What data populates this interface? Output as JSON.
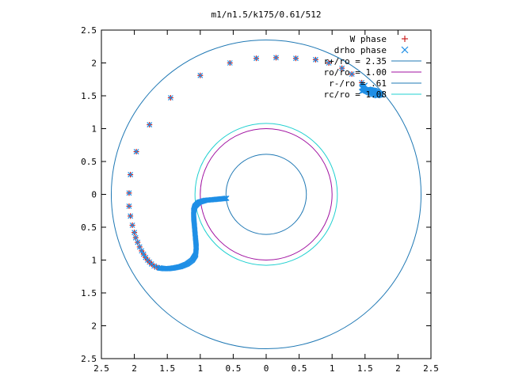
{
  "chart_data": {
    "type": "scatter",
    "title": "m1/n1.5/k175/0.61/512",
    "xlabel": "",
    "ylabel": "",
    "xlim": [
      -2.5,
      2.5
    ],
    "ylim": [
      -2.5,
      2.5
    ],
    "x_ticks": [
      -2.5,
      -2,
      -1.5,
      -1,
      -0.5,
      0,
      0.5,
      1,
      1.5,
      2,
      2.5
    ],
    "y_ticks": [
      -2.5,
      -2,
      -1.5,
      -1,
      -0.5,
      0,
      0.5,
      1,
      1.5,
      2,
      2.5
    ],
    "x_tick_labels": [
      "2.5",
      "2",
      "1.5",
      "1",
      "0.5",
      "0",
      "0.5",
      "1",
      "1.5",
      "2",
      "2.5"
    ],
    "y_tick_labels": [
      "2.5",
      "2",
      "1.5",
      "1",
      "0.5",
      "0",
      "0.5",
      "1",
      "1.5",
      "2",
      "2.5"
    ],
    "grid": false,
    "legend_position": "top-right",
    "colors": {
      "w_phase": "#cc2222",
      "drho_phase": "#1f8fe6",
      "r_plus": "#1f78b4",
      "r_o": "#a010a0",
      "r_minus": "#1f78b4",
      "r_c": "#20d0d0"
    },
    "circles": [
      {
        "name": "r+/ro = 2.35",
        "radius": 2.35,
        "color": "#1f78b4"
      },
      {
        "name": "ro/ro = 1.00",
        "radius": 1.0,
        "color": "#a010a0"
      },
      {
        "name": "r-/ro = .61",
        "radius": 0.61,
        "color": "#1f78b4"
      },
      {
        "name": "rc/ro = 1.08",
        "radius": 1.08,
        "color": "#20d0d0"
      }
    ],
    "series": [
      {
        "name": "W phase",
        "marker": "+",
        "color": "#cc2222",
        "points": [
          [
            1.58,
            1.57
          ],
          [
            1.45,
            1.7
          ],
          [
            1.3,
            1.83
          ],
          [
            1.15,
            1.92
          ],
          [
            0.95,
            2.0
          ],
          [
            0.75,
            2.05
          ],
          [
            0.45,
            2.07
          ],
          [
            0.15,
            2.08
          ],
          [
            -0.15,
            2.07
          ],
          [
            -0.55,
            2.0
          ],
          [
            -1.0,
            1.81
          ],
          [
            -1.45,
            1.47
          ],
          [
            -1.77,
            1.06
          ],
          [
            -1.97,
            0.65
          ],
          [
            -2.06,
            0.3
          ],
          [
            -2.08,
            0.02
          ],
          [
            -2.08,
            -0.18
          ],
          [
            -2.06,
            -0.33
          ],
          [
            -2.03,
            -0.47
          ],
          [
            -2.0,
            -0.58
          ],
          [
            -1.98,
            -0.66
          ],
          [
            -1.95,
            -0.73
          ],
          [
            -1.92,
            -0.8
          ],
          [
            -1.89,
            -0.86
          ],
          [
            -1.86,
            -0.91
          ],
          [
            -1.83,
            -0.96
          ],
          [
            -1.8,
            -1.0
          ],
          [
            -1.77,
            -1.03
          ],
          [
            -1.74,
            -1.06
          ],
          [
            -1.7,
            -1.09
          ],
          [
            -1.66,
            -1.11
          ],
          [
            -1.62,
            -1.12
          ]
        ]
      },
      {
        "name": "drho phase",
        "marker": "x",
        "color": "#1f8fe6",
        "points": [
          [
            1.58,
            1.57
          ],
          [
            1.45,
            1.7
          ],
          [
            1.3,
            1.83
          ],
          [
            1.15,
            1.92
          ],
          [
            0.95,
            2.0
          ],
          [
            0.75,
            2.05
          ],
          [
            0.45,
            2.07
          ],
          [
            0.15,
            2.08
          ],
          [
            -0.15,
            2.07
          ],
          [
            -0.55,
            2.0
          ],
          [
            -1.0,
            1.81
          ],
          [
            -1.45,
            1.47
          ],
          [
            -1.77,
            1.06
          ],
          [
            -1.97,
            0.65
          ],
          [
            -2.06,
            0.3
          ],
          [
            -2.08,
            0.02
          ],
          [
            -2.08,
            -0.18
          ],
          [
            -2.06,
            -0.33
          ],
          [
            -2.03,
            -0.47
          ],
          [
            -2.0,
            -0.58
          ],
          [
            -1.98,
            -0.66
          ],
          [
            -1.95,
            -0.73
          ],
          [
            -1.92,
            -0.8
          ],
          [
            -1.89,
            -0.86
          ],
          [
            -1.86,
            -0.91
          ],
          [
            -1.83,
            -0.96
          ],
          [
            -1.8,
            -1.0
          ],
          [
            -1.77,
            -1.03
          ],
          [
            -1.74,
            -1.06
          ],
          [
            -1.7,
            -1.09
          ],
          [
            -1.66,
            -1.11
          ],
          [
            -1.62,
            -1.12
          ]
        ],
        "dense_paths": [
          [
            [
              1.45,
              1.57
            ],
            [
              1.55,
              1.6
            ],
            [
              1.65,
              1.58
            ],
            [
              1.75,
              1.52
            ],
            [
              1.68,
              1.5
            ],
            [
              1.55,
              1.55
            ],
            [
              1.45,
              1.62
            ],
            [
              1.5,
              1.66
            ]
          ],
          [
            [
              -1.62,
              -1.12
            ],
            [
              -1.55,
              -1.13
            ],
            [
              -1.48,
              -1.13
            ],
            [
              -1.4,
              -1.12
            ],
            [
              -1.3,
              -1.1
            ],
            [
              -1.2,
              -1.06
            ],
            [
              -1.12,
              -1.0
            ],
            [
              -1.07,
              -0.92
            ],
            [
              -1.06,
              -0.8
            ],
            [
              -1.07,
              -0.7
            ],
            [
              -1.08,
              -0.58
            ],
            [
              -1.09,
              -0.46
            ],
            [
              -1.1,
              -0.35
            ],
            [
              -1.1,
              -0.25
            ],
            [
              -1.08,
              -0.18
            ],
            [
              -1.02,
              -0.12
            ],
            [
              -0.92,
              -0.09
            ],
            [
              -0.8,
              -0.08
            ],
            [
              -0.7,
              -0.07
            ],
            [
              -0.6,
              -0.06
            ]
          ]
        ]
      }
    ]
  }
}
